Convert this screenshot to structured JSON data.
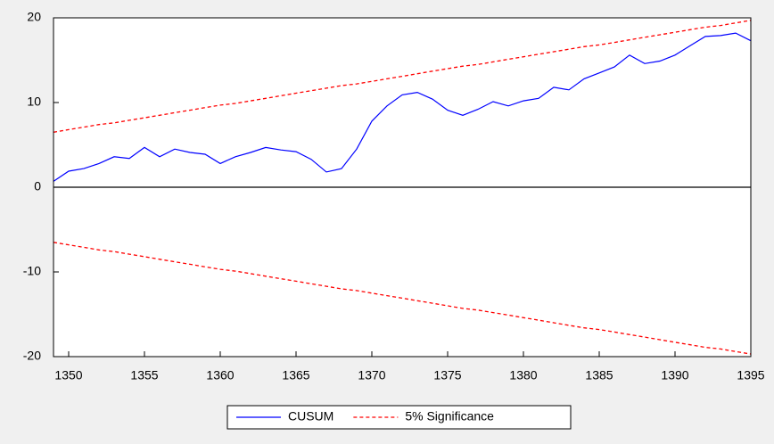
{
  "chart_data": {
    "type": "line",
    "x": [
      1349,
      1350,
      1351,
      1352,
      1353,
      1354,
      1355,
      1356,
      1357,
      1358,
      1359,
      1360,
      1361,
      1362,
      1363,
      1364,
      1365,
      1366,
      1367,
      1368,
      1369,
      1370,
      1371,
      1372,
      1373,
      1374,
      1375,
      1376,
      1377,
      1378,
      1379,
      1380,
      1381,
      1382,
      1383,
      1384,
      1385,
      1386,
      1387,
      1388,
      1389,
      1390,
      1391,
      1392,
      1393,
      1394,
      1395
    ],
    "series": [
      {
        "name": "CUSUM",
        "color": "#0000ff",
        "dash": false,
        "values": [
          0.7,
          1.9,
          2.2,
          2.8,
          3.6,
          3.4,
          4.7,
          3.6,
          4.5,
          4.1,
          3.9,
          2.8,
          3.6,
          4.1,
          4.7,
          4.4,
          4.2,
          3.3,
          1.8,
          2.2,
          4.5,
          7.8,
          9.6,
          10.9,
          11.2,
          10.4,
          9.1,
          8.5,
          9.2,
          10.1,
          9.6,
          10.2,
          10.5,
          11.8,
          11.5,
          12.8,
          13.5,
          14.2,
          15.6,
          14.6,
          14.9,
          15.6,
          16.7,
          17.8,
          17.9,
          18.2,
          17.3
        ]
      },
      {
        "name": "5% Significance",
        "color": "#ff0000",
        "dash": true,
        "values": [
          6.5,
          6.8,
          7.1,
          7.4,
          7.6,
          7.9,
          8.2,
          8.5,
          8.8,
          9.1,
          9.4,
          9.7,
          9.9,
          10.2,
          10.5,
          10.8,
          11.1,
          11.4,
          11.7,
          12.0,
          12.2,
          12.5,
          12.8,
          13.1,
          13.4,
          13.7,
          14.0,
          14.3,
          14.5,
          14.8,
          15.1,
          15.4,
          15.7,
          16.0,
          16.3,
          16.6,
          16.8,
          17.1,
          17.4,
          17.7,
          18.0,
          18.3,
          18.6,
          18.9,
          19.1,
          19.4,
          19.7
        ],
        "lower": [
          -6.5,
          -6.8,
          -7.1,
          -7.4,
          -7.6,
          -7.9,
          -8.2,
          -8.5,
          -8.8,
          -9.1,
          -9.4,
          -9.7,
          -9.9,
          -10.2,
          -10.5,
          -10.8,
          -11.1,
          -11.4,
          -11.7,
          -12.0,
          -12.2,
          -12.5,
          -12.8,
          -13.1,
          -13.4,
          -13.7,
          -14.0,
          -14.3,
          -14.5,
          -14.8,
          -15.1,
          -15.4,
          -15.7,
          -16.0,
          -16.3,
          -16.6,
          -16.8,
          -17.1,
          -17.4,
          -17.7,
          -18.0,
          -18.3,
          -18.6,
          -18.9,
          -19.1,
          -19.4,
          -19.7
        ]
      }
    ],
    "xlim": [
      1349,
      1395
    ],
    "xticks": [
      1350,
      1355,
      1360,
      1365,
      1370,
      1375,
      1380,
      1385,
      1390,
      1395
    ],
    "ylim": [
      -20,
      20
    ],
    "yticks": [
      -20,
      -10,
      0,
      10,
      20
    ],
    "zero_line": true,
    "legend": "bottom"
  }
}
